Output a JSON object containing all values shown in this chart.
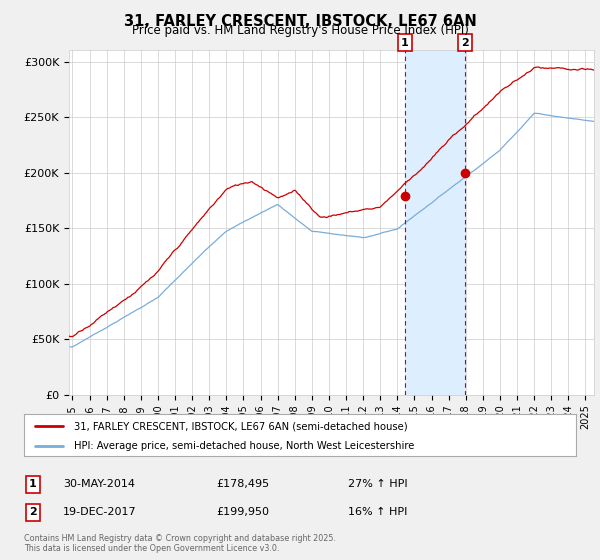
{
  "title": "31, FARLEY CRESCENT, IBSTOCK, LE67 6AN",
  "subtitle": "Price paid vs. HM Land Registry's House Price Index (HPI)",
  "legend_line1": "31, FARLEY CRESCENT, IBSTOCK, LE67 6AN (semi-detached house)",
  "legend_line2": "HPI: Average price, semi-detached house, North West Leicestershire",
  "marker1_date": "30-MAY-2014",
  "marker1_price": "£178,495",
  "marker1_hpi": "27% ↑ HPI",
  "marker1_x": 2014.42,
  "marker1_y": 178495,
  "marker2_date": "19-DEC-2017",
  "marker2_price": "£199,950",
  "marker2_hpi": "16% ↑ HPI",
  "marker2_x": 2017.97,
  "marker2_y": 199950,
  "red_color": "#cc0000",
  "blue_color": "#7aacda",
  "shaded_color": "#ddeeff",
  "background_color": "#f0f0f0",
  "plot_bg": "#ffffff",
  "ylim": [
    0,
    310000
  ],
  "xlim_start": 1994.8,
  "xlim_end": 2025.5,
  "copyright_text": "Contains HM Land Registry data © Crown copyright and database right 2025.\nThis data is licensed under the Open Government Licence v3.0.",
  "yticks": [
    0,
    50000,
    100000,
    150000,
    200000,
    250000,
    300000
  ],
  "ytick_labels": [
    "£0",
    "£50K",
    "£100K",
    "£150K",
    "£200K",
    "£250K",
    "£300K"
  ],
  "xticks": [
    1995,
    1996,
    1997,
    1998,
    1999,
    2000,
    2001,
    2002,
    2003,
    2004,
    2005,
    2006,
    2007,
    2008,
    2009,
    2010,
    2011,
    2012,
    2013,
    2014,
    2015,
    2016,
    2017,
    2018,
    2019,
    2020,
    2021,
    2022,
    2023,
    2024,
    2025
  ]
}
